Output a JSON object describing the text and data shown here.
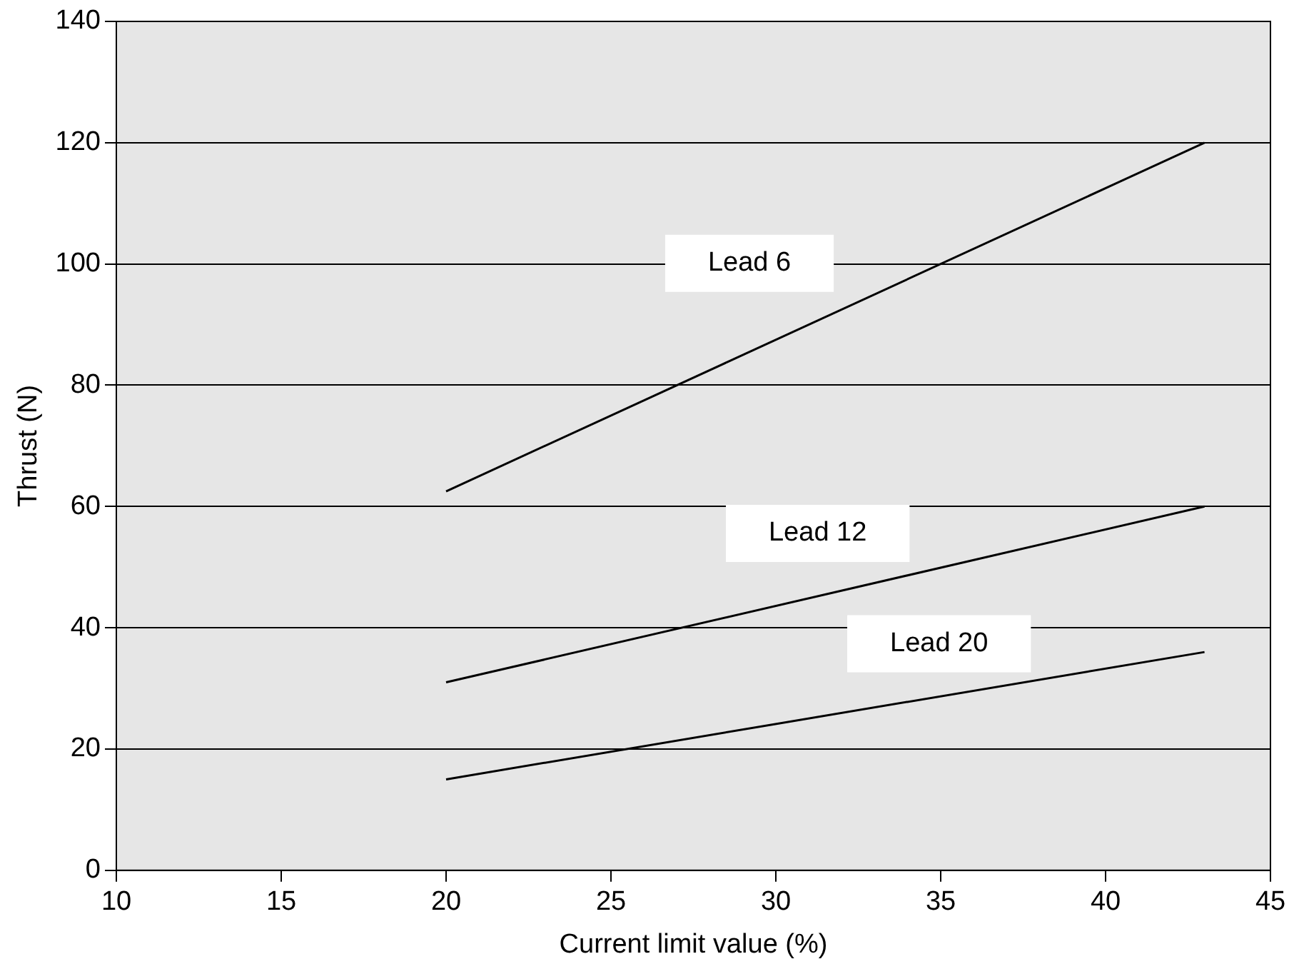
{
  "chart_data": {
    "type": "line",
    "xlabel": "Current limit value (%)",
    "ylabel": "Thrust (N)",
    "xlim": [
      10,
      45
    ],
    "xticks": [
      10,
      15,
      20,
      25,
      30,
      35,
      40,
      45
    ],
    "ylim": [
      0,
      140
    ],
    "yticks": [
      0,
      20,
      40,
      60,
      80,
      100,
      120,
      140
    ],
    "grid": "y",
    "legend": false,
    "marker": "none",
    "line_style": "solid",
    "x": [
      20,
      43
    ],
    "series": [
      {
        "name": "Lead 6",
        "color": "#000000",
        "values": [
          62.5,
          120
        ]
      },
      {
        "name": "Lead 12",
        "color": "#000000",
        "values": [
          31,
          60
        ]
      },
      {
        "name": "Lead 20",
        "color": "#000000",
        "values": [
          15,
          36
        ]
      }
    ]
  }
}
